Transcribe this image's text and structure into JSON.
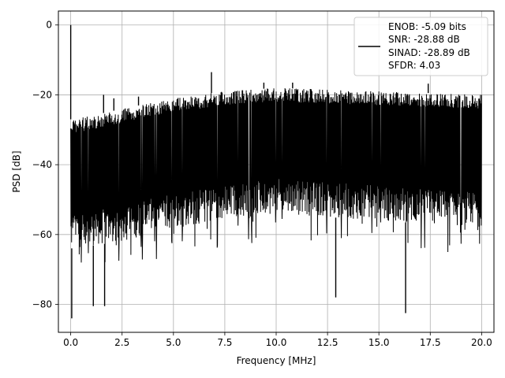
{
  "chart_data": {
    "type": "line",
    "title": "",
    "xlabel": "Frequency [MHz]",
    "ylabel": "PSD [dB]",
    "xlim": [
      -0.6,
      20.6
    ],
    "ylim": [
      -88,
      4
    ],
    "xticks": [
      0.0,
      2.5,
      5.0,
      7.5,
      10.0,
      12.5,
      15.0,
      17.5,
      20.0
    ],
    "xtick_labels": [
      "0.0",
      "2.5",
      "5.0",
      "7.5",
      "10.0",
      "12.5",
      "15.0",
      "17.5",
      "20.0"
    ],
    "yticks": [
      0,
      -20,
      -40,
      -60,
      -80
    ],
    "ytick_labels": [
      "0",
      "−20",
      "−40",
      "−60",
      "−80"
    ],
    "grid": true,
    "line_color": "#000000",
    "legend": {
      "placement": "top-right",
      "entries": [
        "ENOB: -5.09 bits",
        "SNR: -28.88 dB",
        "SINAD: -28.89 dB",
        "SFDR: 4.03"
      ]
    },
    "series": [
      {
        "x_range": [
          0,
          20
        ],
        "upper_envelope": [
          [
            0.0,
            -27
          ],
          [
            1.0,
            -26
          ],
          [
            2.5,
            -24
          ],
          [
            5.0,
            -21
          ],
          [
            7.5,
            -19
          ],
          [
            10.0,
            -18
          ],
          [
            12.5,
            -18.5
          ],
          [
            15.0,
            -19
          ],
          [
            17.5,
            -19.5
          ],
          [
            20.0,
            -20
          ]
        ],
        "lower_envelope": [
          [
            0.0,
            -64
          ],
          [
            2.5,
            -62
          ],
          [
            5.0,
            -58
          ],
          [
            10.0,
            -54
          ],
          [
            15.0,
            -56
          ],
          [
            20.0,
            -58
          ]
        ],
        "peaks": [
          [
            0.0,
            0
          ],
          [
            0.05,
            -84
          ],
          [
            6.85,
            -13.5
          ],
          [
            16.3,
            -82.5
          ],
          [
            12.9,
            -78
          ],
          [
            1.65,
            -80.5
          ],
          [
            1.1,
            -80.5
          ],
          [
            1.6,
            -20
          ],
          [
            2.1,
            -21
          ],
          [
            3.3,
            -20.5
          ],
          [
            9.4,
            -16.5
          ],
          [
            10.8,
            -16.5
          ],
          [
            17.4,
            -16.8
          ]
        ]
      }
    ]
  }
}
